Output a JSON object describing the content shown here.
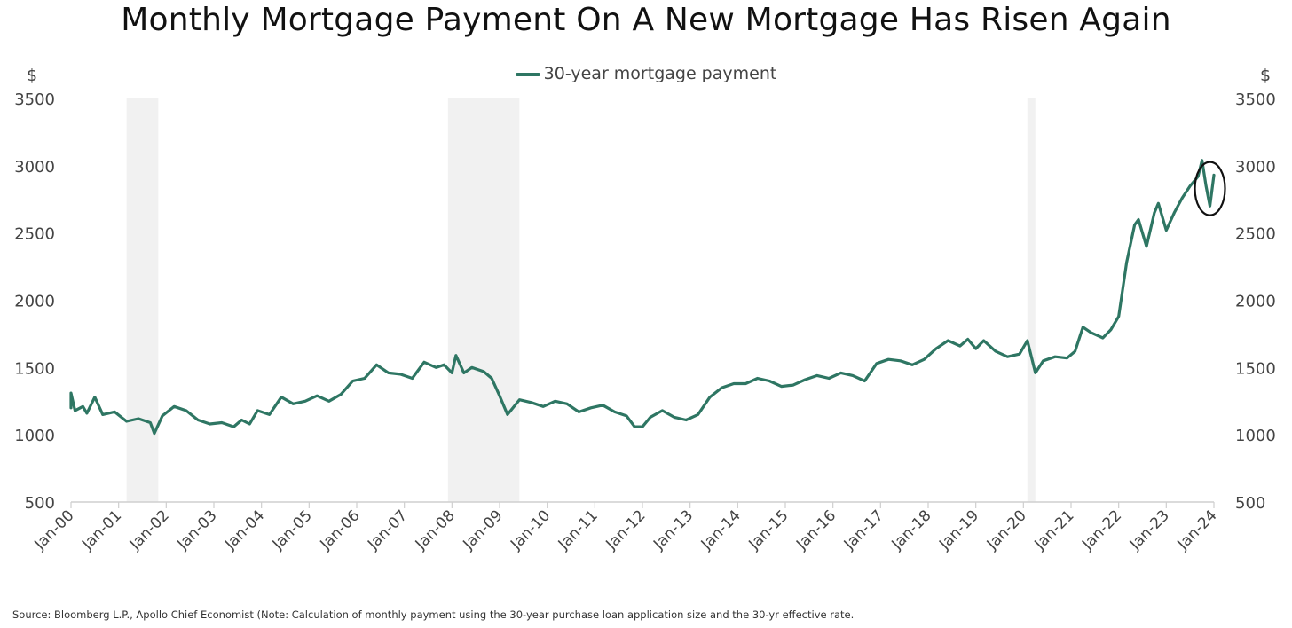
{
  "chart_data": {
    "type": "line",
    "title": "Monthly Mortgage Payment On A New Mortgage Has Risen Again",
    "ylabel_left": "$",
    "ylabel_right": "$",
    "ylim": [
      500,
      3500
    ],
    "yticks": [
      500,
      1000,
      1500,
      2000,
      2500,
      3000,
      3500
    ],
    "xlim": [
      "2000-01",
      "2024-01"
    ],
    "xticks": [
      "Jan-00",
      "Jan-01",
      "Jan-02",
      "Jan-03",
      "Jan-04",
      "Jan-05",
      "Jan-06",
      "Jan-07",
      "Jan-08",
      "Jan-09",
      "Jan-10",
      "Jan-11",
      "Jan-12",
      "Jan-13",
      "Jan-14",
      "Jan-15",
      "Jan-16",
      "Jan-17",
      "Jan-18",
      "Jan-19",
      "Jan-20",
      "Jan-21",
      "Jan-22",
      "Jan-23",
      "Jan-24"
    ],
    "legend_position": "top-center",
    "grid": false,
    "series": [
      {
        "name": "30-year mortgage payment",
        "color": "#2e7663",
        "points": [
          [
            "2000-01",
            1200
          ],
          [
            "2000-01",
            1310
          ],
          [
            "2000-02",
            1180
          ],
          [
            "2000-04",
            1210
          ],
          [
            "2000-05",
            1160
          ],
          [
            "2000-07",
            1280
          ],
          [
            "2000-09",
            1150
          ],
          [
            "2000-12",
            1170
          ],
          [
            "2001-03",
            1100
          ],
          [
            "2001-06",
            1120
          ],
          [
            "2001-09",
            1090
          ],
          [
            "2001-10",
            1010
          ],
          [
            "2001-12",
            1140
          ],
          [
            "2002-03",
            1210
          ],
          [
            "2002-06",
            1180
          ],
          [
            "2002-09",
            1110
          ],
          [
            "2002-12",
            1080
          ],
          [
            "2003-03",
            1090
          ],
          [
            "2003-06",
            1060
          ],
          [
            "2003-08",
            1110
          ],
          [
            "2003-10",
            1080
          ],
          [
            "2003-12",
            1180
          ],
          [
            "2004-03",
            1150
          ],
          [
            "2004-06",
            1280
          ],
          [
            "2004-09",
            1230
          ],
          [
            "2004-12",
            1250
          ],
          [
            "2005-03",
            1290
          ],
          [
            "2005-06",
            1250
          ],
          [
            "2005-09",
            1300
          ],
          [
            "2005-12",
            1400
          ],
          [
            "2006-03",
            1420
          ],
          [
            "2006-06",
            1520
          ],
          [
            "2006-09",
            1460
          ],
          [
            "2006-12",
            1450
          ],
          [
            "2007-03",
            1420
          ],
          [
            "2007-06",
            1540
          ],
          [
            "2007-09",
            1500
          ],
          [
            "2007-11",
            1520
          ],
          [
            "2008-01",
            1460
          ],
          [
            "2008-02",
            1590
          ],
          [
            "2008-04",
            1460
          ],
          [
            "2008-06",
            1500
          ],
          [
            "2008-09",
            1470
          ],
          [
            "2008-11",
            1420
          ],
          [
            "2009-01",
            1290
          ],
          [
            "2009-03",
            1150
          ],
          [
            "2009-06",
            1260
          ],
          [
            "2009-09",
            1240
          ],
          [
            "2009-12",
            1210
          ],
          [
            "2010-03",
            1250
          ],
          [
            "2010-06",
            1230
          ],
          [
            "2010-09",
            1170
          ],
          [
            "2010-12",
            1200
          ],
          [
            "2011-03",
            1220
          ],
          [
            "2011-06",
            1170
          ],
          [
            "2011-09",
            1140
          ],
          [
            "2011-11",
            1060
          ],
          [
            "2012-01",
            1060
          ],
          [
            "2012-03",
            1130
          ],
          [
            "2012-06",
            1180
          ],
          [
            "2012-09",
            1130
          ],
          [
            "2012-12",
            1110
          ],
          [
            "2013-03",
            1150
          ],
          [
            "2013-06",
            1280
          ],
          [
            "2013-09",
            1350
          ],
          [
            "2013-12",
            1380
          ],
          [
            "2014-03",
            1380
          ],
          [
            "2014-06",
            1420
          ],
          [
            "2014-09",
            1400
          ],
          [
            "2014-12",
            1360
          ],
          [
            "2015-03",
            1370
          ],
          [
            "2015-06",
            1410
          ],
          [
            "2015-09",
            1440
          ],
          [
            "2015-12",
            1420
          ],
          [
            "2016-03",
            1460
          ],
          [
            "2016-06",
            1440
          ],
          [
            "2016-09",
            1400
          ],
          [
            "2016-12",
            1530
          ],
          [
            "2017-03",
            1560
          ],
          [
            "2017-06",
            1550
          ],
          [
            "2017-09",
            1520
          ],
          [
            "2017-12",
            1560
          ],
          [
            "2018-03",
            1640
          ],
          [
            "2018-06",
            1700
          ],
          [
            "2018-09",
            1660
          ],
          [
            "2018-11",
            1710
          ],
          [
            "2019-01",
            1640
          ],
          [
            "2019-03",
            1700
          ],
          [
            "2019-06",
            1620
          ],
          [
            "2019-09",
            1580
          ],
          [
            "2019-12",
            1600
          ],
          [
            "2020-02",
            1700
          ],
          [
            "2020-04",
            1460
          ],
          [
            "2020-06",
            1550
          ],
          [
            "2020-09",
            1580
          ],
          [
            "2020-12",
            1570
          ],
          [
            "2021-02",
            1620
          ],
          [
            "2021-04",
            1800
          ],
          [
            "2021-06",
            1760
          ],
          [
            "2021-09",
            1720
          ],
          [
            "2021-11",
            1780
          ],
          [
            "2022-01",
            1880
          ],
          [
            "2022-03",
            2280
          ],
          [
            "2022-05",
            2560
          ],
          [
            "2022-06",
            2600
          ],
          [
            "2022-08",
            2400
          ],
          [
            "2022-10",
            2650
          ],
          [
            "2022-11",
            2720
          ],
          [
            "2023-01",
            2520
          ],
          [
            "2023-03",
            2650
          ],
          [
            "2023-05",
            2760
          ],
          [
            "2023-07",
            2850
          ],
          [
            "2023-09",
            2920
          ],
          [
            "2023-10",
            3040
          ],
          [
            "2023-11",
            2850
          ],
          [
            "2023-12",
            2700
          ],
          [
            "2024-01",
            2930
          ]
        ]
      }
    ],
    "recession_shading": [
      [
        "2001-03",
        "2001-11"
      ],
      [
        "2007-12",
        "2009-06"
      ],
      [
        "2020-02",
        "2020-04"
      ]
    ],
    "annotations": [
      "circle around latest data point"
    ]
  },
  "source_text": "Source: Bloomberg L.P., Apollo Chief Economist (Note: Calculation of monthly payment using the 30-year purchase loan application size and the 30-yr effective rate."
}
